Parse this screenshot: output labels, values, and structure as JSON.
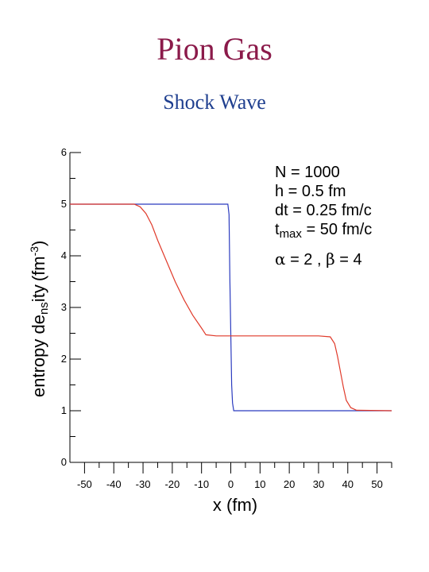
{
  "title": "Pion Gas",
  "subtitle": "Shock Wave",
  "chart_data": {
    "type": "line",
    "xlabel": "x (fm)",
    "ylabel_parts": [
      "entropy de",
      "ns",
      "i",
      "ty",
      "(",
      "fm",
      "-3",
      ")"
    ],
    "xlim": [
      -55,
      55
    ],
    "ylim": [
      0,
      6
    ],
    "x_ticks": [
      -50,
      -40,
      -30,
      -20,
      -10,
      0,
      10,
      20,
      30,
      40,
      50
    ],
    "y_ticks": [
      0,
      1,
      2,
      3,
      4,
      5,
      6
    ],
    "grid": false,
    "annotations": [
      {
        "text": "N = 1000"
      },
      {
        "text": "h = 0.5 fm"
      },
      {
        "text": "dt = 0.25 fm/c"
      },
      {
        "text": "t",
        "sub": "max",
        "rest": " = 50 fm/c"
      },
      {
        "parts": [
          "α",
          " = 2 ,  ",
          "β",
          " = 4"
        ]
      }
    ],
    "series": [
      {
        "color": "#2b3bbf",
        "x": [
          -55,
          -1,
          -0.6,
          -0.3,
          0,
          0.3,
          0.6,
          1,
          55
        ],
        "y": [
          5,
          5,
          4.8,
          3.5,
          2.5,
          1.5,
          1.15,
          1,
          1
        ]
      },
      {
        "color": "#e03a2a",
        "x": [
          -55,
          -33,
          -31,
          -29,
          -27,
          -25,
          -22,
          -19,
          -16,
          -13,
          -10,
          -8.5,
          -5,
          0,
          10,
          20,
          30,
          34,
          35.5,
          36.5,
          37.5,
          38.5,
          39.5,
          41,
          43,
          55
        ],
        "y": [
          5,
          5,
          4.95,
          4.82,
          4.6,
          4.3,
          3.9,
          3.5,
          3.15,
          2.85,
          2.6,
          2.47,
          2.45,
          2.45,
          2.45,
          2.45,
          2.45,
          2.43,
          2.3,
          2.05,
          1.75,
          1.45,
          1.2,
          1.06,
          1.01,
          1
        ]
      }
    ]
  }
}
